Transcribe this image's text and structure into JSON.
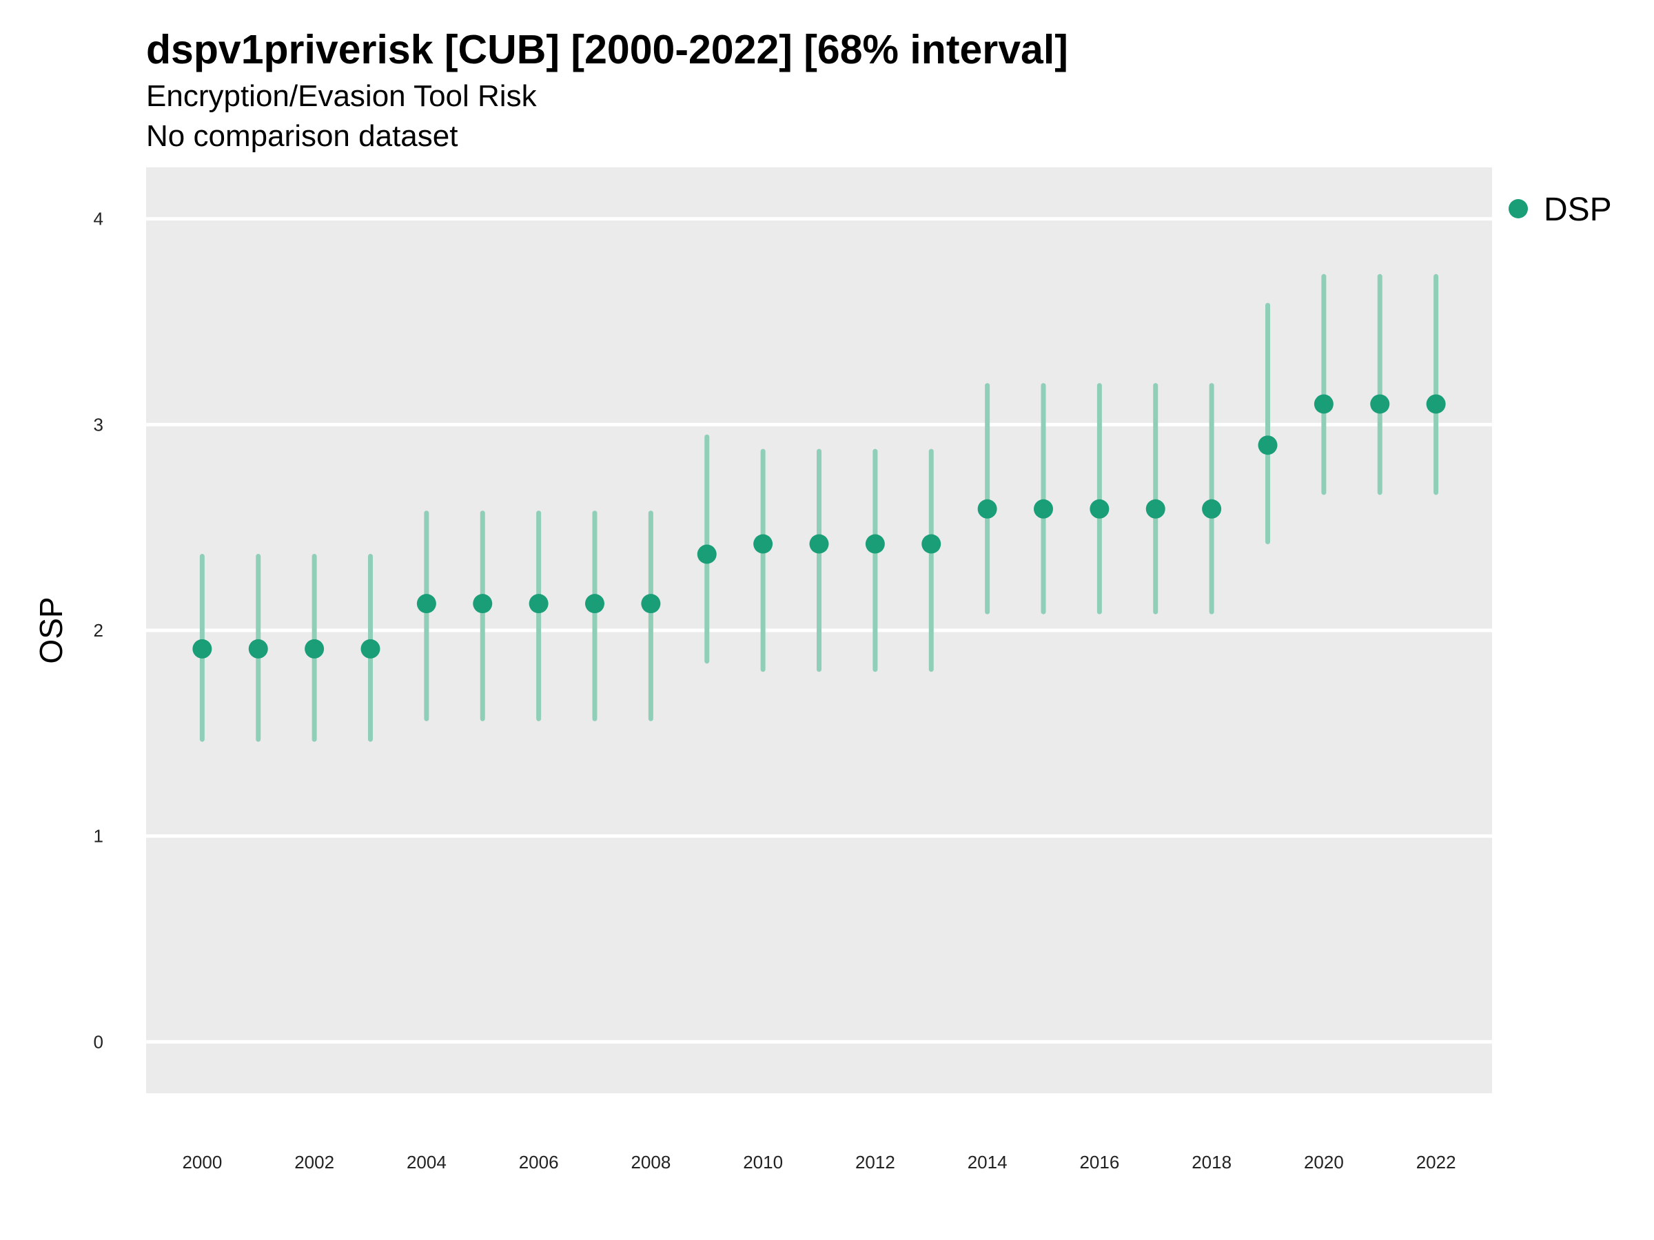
{
  "chart_data": {
    "type": "scatter",
    "title": "dspv1priverisk [CUB] [2000-2022] [68% interval]",
    "subtitle": [
      "Encryption/Evasion Tool Risk",
      "No comparison dataset"
    ],
    "xlabel": "",
    "ylabel": "OSP",
    "ylim": [
      -0.25,
      4.25
    ],
    "yticks": [
      0,
      1,
      2,
      3,
      4
    ],
    "xlim": [
      1999,
      2023
    ],
    "xticks": [
      2000,
      2002,
      2004,
      2006,
      2008,
      2010,
      2012,
      2014,
      2016,
      2018,
      2020,
      2022
    ],
    "grid": true,
    "legend_position": "right",
    "colors": {
      "point": "#1a9e77",
      "interval": "#8fcfb7",
      "panel": "#ebebeb",
      "gridline": "#ffffff"
    },
    "series": [
      {
        "name": "DSP",
        "x": [
          2000,
          2001,
          2002,
          2003,
          2004,
          2005,
          2006,
          2007,
          2008,
          2009,
          2010,
          2011,
          2012,
          2013,
          2014,
          2015,
          2016,
          2017,
          2018,
          2019,
          2020,
          2021,
          2022
        ],
        "y": [
          1.91,
          1.91,
          1.91,
          1.91,
          2.13,
          2.13,
          2.13,
          2.13,
          2.13,
          2.37,
          2.42,
          2.42,
          2.42,
          2.42,
          2.59,
          2.59,
          2.59,
          2.59,
          2.59,
          2.9,
          3.1,
          3.1,
          3.1
        ],
        "lower": [
          1.47,
          1.47,
          1.47,
          1.47,
          1.57,
          1.57,
          1.57,
          1.57,
          1.57,
          1.85,
          1.81,
          1.81,
          1.81,
          1.81,
          2.09,
          2.09,
          2.09,
          2.09,
          2.09,
          2.43,
          2.67,
          2.67,
          2.67
        ],
        "upper": [
          2.36,
          2.36,
          2.36,
          2.36,
          2.57,
          2.57,
          2.57,
          2.57,
          2.57,
          2.94,
          2.87,
          2.87,
          2.87,
          2.87,
          3.19,
          3.19,
          3.19,
          3.19,
          3.19,
          3.58,
          3.72,
          3.72,
          3.72
        ]
      }
    ]
  }
}
